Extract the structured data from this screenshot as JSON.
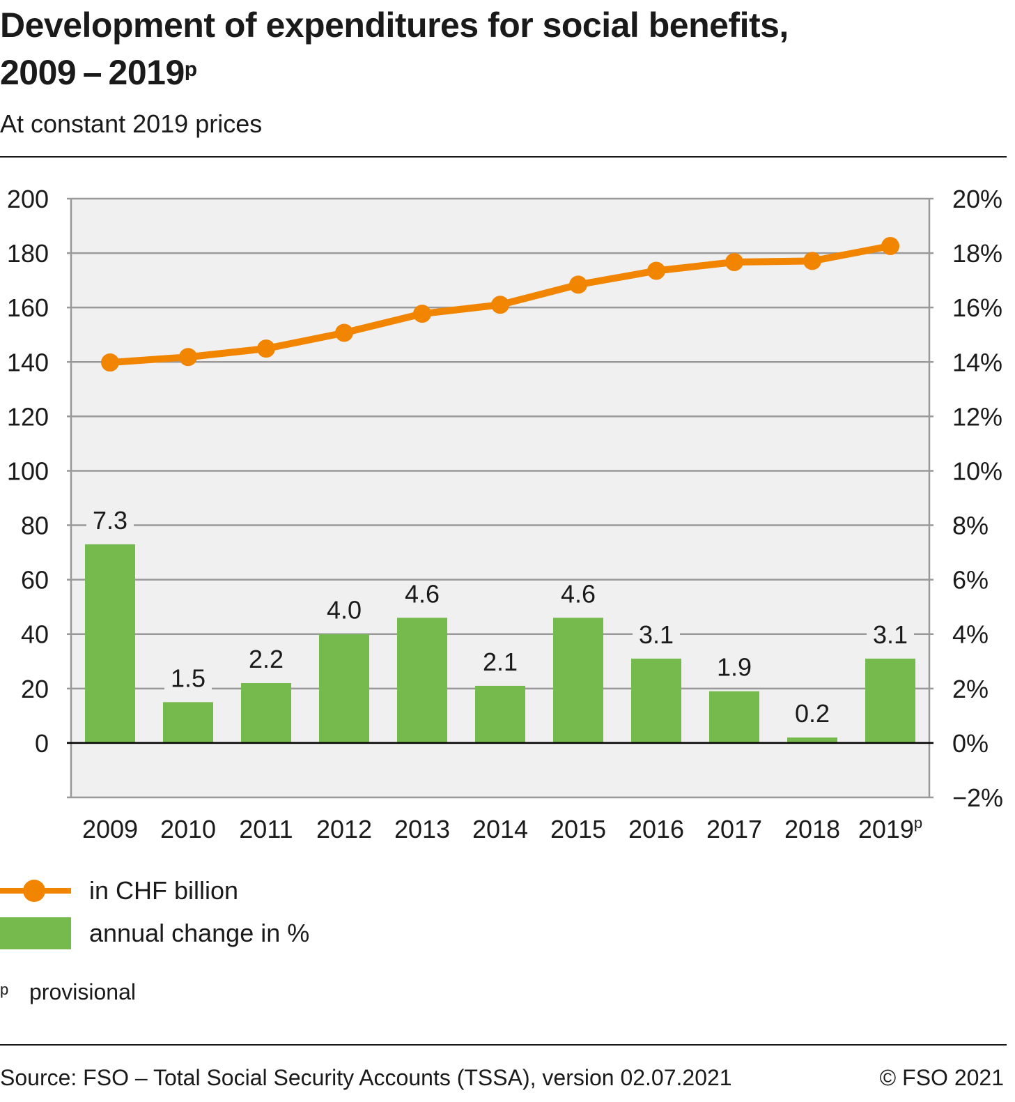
{
  "header": {
    "title_line1": "Development of expenditures for social benefits,",
    "title_line2": "2009 – 2019",
    "title_sup": "p",
    "subtitle": "At constant 2019 prices"
  },
  "colors": {
    "line": "#f28500",
    "bar": "#76b94c",
    "plot_bg": "#f0f0f0",
    "grid": "#999999"
  },
  "chart_data": {
    "type": "bar",
    "categories": [
      "2009",
      "2010",
      "2011",
      "2012",
      "2013",
      "2014",
      "2015",
      "2016",
      "2017",
      "2018",
      "2019"
    ],
    "category_suffix_last": "p",
    "y_left": {
      "ticks": [
        0,
        20,
        40,
        60,
        80,
        100,
        120,
        140,
        160,
        180,
        200
      ],
      "ylim": [
        -20,
        200
      ]
    },
    "y_right": {
      "ticks": [
        "−2%",
        "0%",
        "2%",
        "4%",
        "6%",
        "8%",
        "10%",
        "12%",
        "14%",
        "16%",
        "18%",
        "20%"
      ],
      "ylim": [
        -2,
        20
      ]
    },
    "grid": true,
    "series": [
      {
        "name": "in CHF billion",
        "type": "line",
        "axis": "left",
        "values": [
          139.8,
          141.8,
          144.9,
          150.7,
          157.7,
          161.0,
          168.4,
          173.5,
          176.7,
          177.1,
          182.6
        ]
      },
      {
        "name": "annual change in %",
        "type": "bar",
        "axis": "right",
        "values": [
          7.3,
          1.5,
          2.2,
          4.0,
          4.6,
          2.1,
          4.6,
          3.1,
          1.9,
          0.2,
          3.1
        ],
        "labels": [
          "7.3",
          "1.5",
          "2.2",
          "4.0",
          "4.6",
          "2.1",
          "4.6",
          "3.1",
          "1.9",
          "0.2",
          "3.1"
        ]
      }
    ],
    "legend_position": "bottom-left"
  },
  "legend": [
    {
      "label": "in CHF billion"
    },
    {
      "label": "annual change in %"
    }
  ],
  "note": {
    "mark": "p",
    "text": "provisional"
  },
  "footer": {
    "source": "Source: FSO – Total Social Security Accounts (TSSA), version 02.07.2021",
    "copyright": "© FSO 2021"
  }
}
